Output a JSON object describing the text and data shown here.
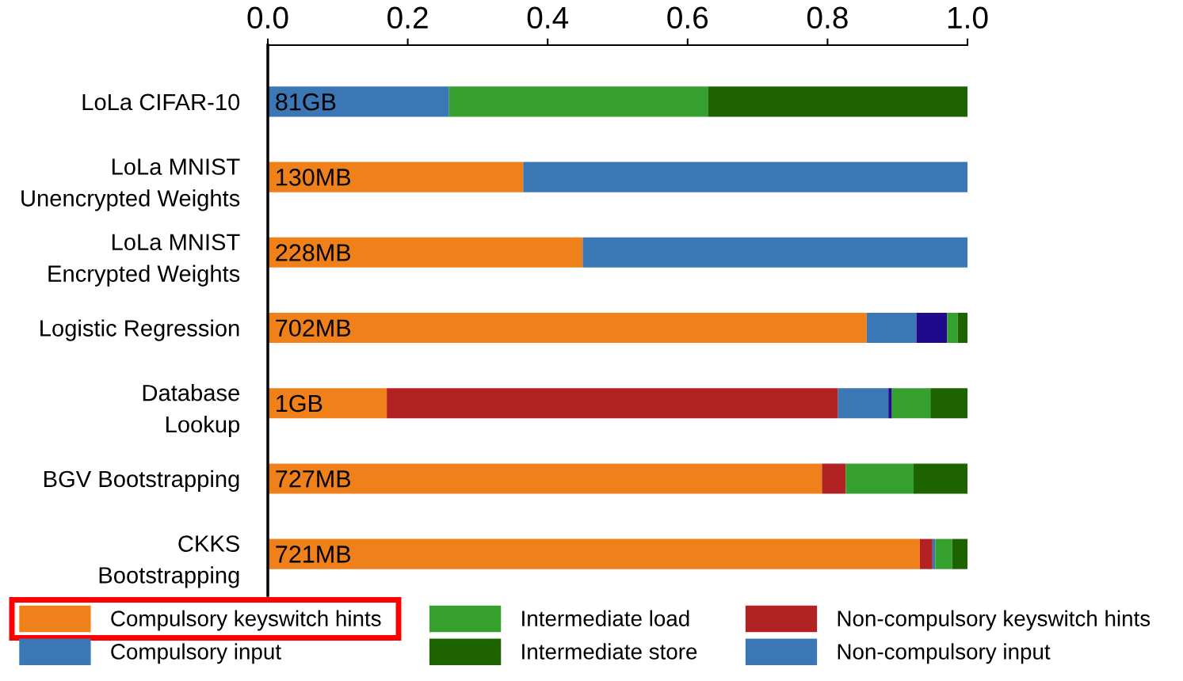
{
  "chart_data": {
    "type": "bar",
    "orientation": "horizontal",
    "stacked": true,
    "categories": [
      "LoLa CIFAR-10",
      "LoLa MNIST\nUnencrypted Weights",
      "LoLa MNIST\nEncrypted Weights",
      "Logistic Regression",
      "Database\nLookup",
      "BGV Bootstrapping",
      "CKKS\nBootstrapping"
    ],
    "series": [
      {
        "name": "Compulsory keyswitch hints",
        "color": "#f0801a",
        "values": [
          null,
          0.365,
          0.45,
          0.856,
          0.17,
          0.792,
          0.932
        ]
      },
      {
        "name": "Compulsory input",
        "color": "#3a77b4",
        "values": [
          0.259,
          0.635,
          0.55,
          null,
          null,
          null,
          null
        ]
      },
      {
        "name": "Non-compulsory keyswitch hints",
        "color": "#b22222",
        "values": [
          null,
          null,
          null,
          null,
          0.645,
          0.034,
          0.018
        ]
      },
      {
        "name": "Non-compulsory input",
        "color": "#3a77b4",
        "values": [
          null,
          null,
          null,
          0.071,
          0.072,
          null,
          0.004
        ]
      },
      {
        "color": "#1f0a8c",
        "values": [
          null,
          null,
          null,
          0.044,
          0.005,
          null,
          null
        ]
      },
      {
        "name": "Intermediate load",
        "color": "#35a02e",
        "values": [
          0.37,
          null,
          null,
          0.015,
          0.055,
          0.097,
          0.024
        ]
      },
      {
        "name": "Intermediate store",
        "color": "#1d6400",
        "values": [
          0.371,
          null,
          null,
          0.014,
          0.053,
          0.077,
          0.022
        ]
      }
    ],
    "xlim": [
      0.0,
      1.0
    ],
    "xticks": [
      {
        "value": 0.0,
        "label": "0.0"
      },
      0.2,
      0.4,
      0.6,
      0.8,
      {
        "value": 1.0,
        "label": "1.0"
      }
    ],
    "annotations": [
      "81GB",
      "130MB",
      "228MB",
      "702MB",
      "1GB",
      "727MB",
      "721MB"
    ],
    "legend": "bottom",
    "grid": false
  }
}
